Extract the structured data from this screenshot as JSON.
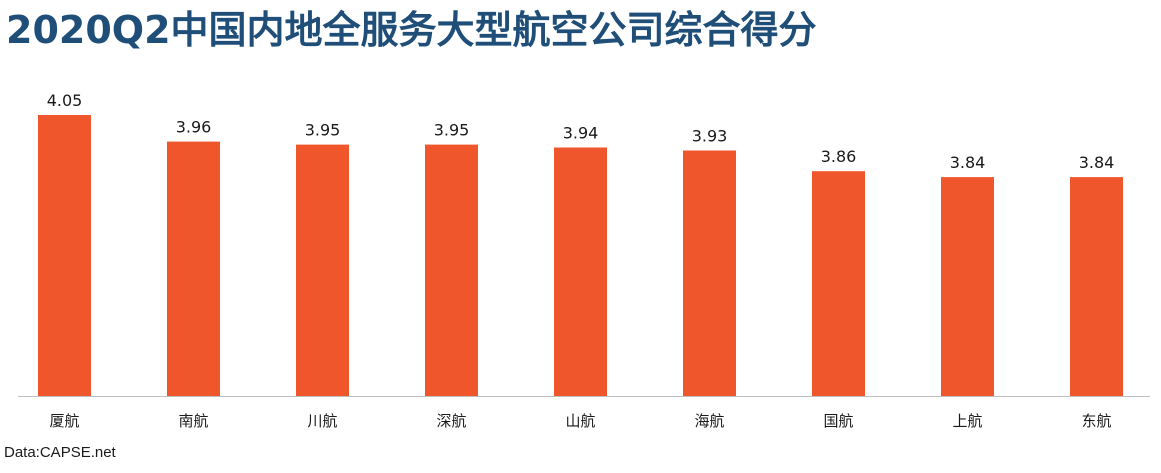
{
  "title": "2020Q2中国内地全服务大型航空公司综合得分",
  "source": "Data:CAPSE.net",
  "colors": {
    "title": "#1f4e79",
    "bar": "#f0562b",
    "axis": "#bfbfbf"
  },
  "chart_data": {
    "type": "bar",
    "categories": [
      "厦航",
      "南航",
      "川航",
      "深航",
      "山航",
      "海航",
      "国航",
      "上航",
      "东航"
    ],
    "values": [
      4.05,
      3.96,
      3.95,
      3.95,
      3.94,
      3.93,
      3.86,
      3.84,
      3.84
    ],
    "value_labels": [
      "4.05",
      "3.96",
      "3.95",
      "3.95",
      "3.94",
      "3.93",
      "3.86",
      "3.84",
      "3.84"
    ],
    "ylim": [
      3.1,
      4.05
    ],
    "grid": false,
    "legend": "none"
  }
}
